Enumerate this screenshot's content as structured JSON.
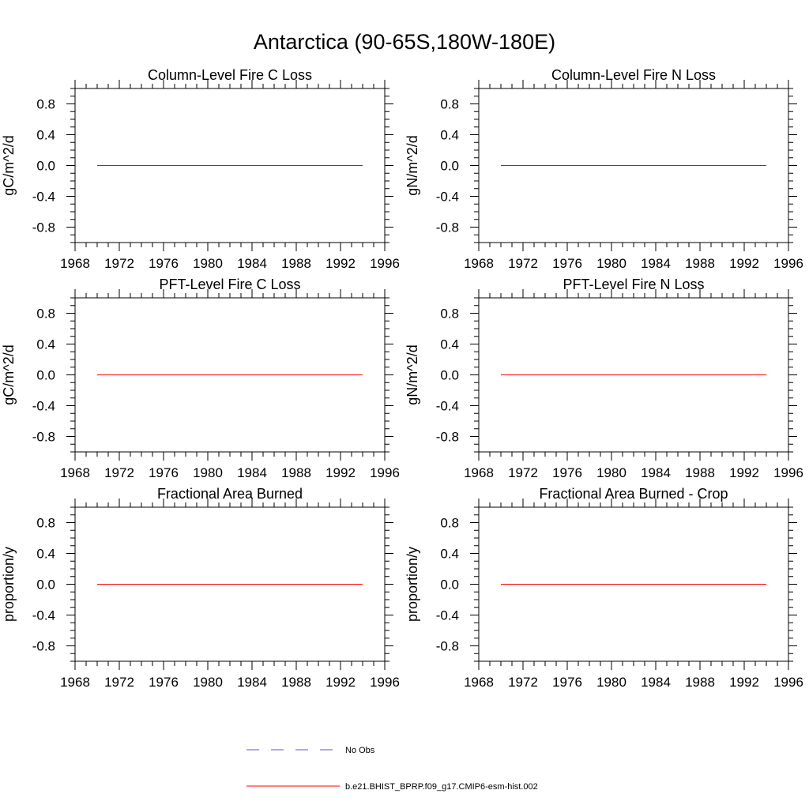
{
  "figure_title": "Antarctica (90-65S,180W-180E)",
  "chart_data": [
    {
      "type": "line",
      "title": "Column-Level Fire C Loss",
      "xlabel": "",
      "ylabel": "gC/m^2/d",
      "xlim": [
        1968,
        1996
      ],
      "ylim": [
        -1.0,
        1.0
      ],
      "x_ticks": [
        1968,
        1972,
        1976,
        1980,
        1984,
        1988,
        1992,
        1996
      ],
      "x_tick_labels": [
        "1968",
        "1972",
        "1976",
        "1980",
        "1984",
        "1988",
        "1992",
        "1996"
      ],
      "y_ticks": [
        -0.8,
        -0.4,
        0.0,
        0.4,
        0.8
      ],
      "y_tick_labels": [
        "-0.8",
        "-0.4",
        "0.0",
        "0.4",
        "0.8"
      ],
      "series": [
        {
          "name": "b.e21.BHIST_BPRP.f09_g17.CMIP6-esm-hist.002",
          "color": "#ff0000",
          "x": [
            1970,
            1994
          ],
          "values": [
            0.0,
            0.0
          ]
        }
      ]
    },
    {
      "type": "line",
      "title": "Column-Level Fire N Loss",
      "xlabel": "",
      "ylabel": "gN/m^2/d",
      "xlim": [
        1968,
        1996
      ],
      "ylim": [
        -1.0,
        1.0
      ],
      "x_ticks": [
        1968,
        1972,
        1976,
        1980,
        1984,
        1988,
        1992,
        1996
      ],
      "x_tick_labels": [
        "1968",
        "1972",
        "1976",
        "1980",
        "1984",
        "1988",
        "1992",
        "1996"
      ],
      "y_ticks": [
        -0.8,
        -0.4,
        0.0,
        0.4,
        0.8
      ],
      "y_tick_labels": [
        "-0.8",
        "-0.4",
        "0.0",
        "0.4",
        "0.8"
      ],
      "series": [
        {
          "name": "b.e21.BHIST_BPRP.f09_g17.CMIP6-esm-hist.002",
          "color": "#ff0000",
          "x": [
            1970,
            1994
          ],
          "values": [
            0.0,
            0.0
          ]
        }
      ]
    },
    {
      "type": "line",
      "title": "PFT-Level Fire C Loss",
      "xlabel": "",
      "ylabel": "gC/m^2/d",
      "xlim": [
        1968,
        1996
      ],
      "ylim": [
        -1.0,
        1.0
      ],
      "x_ticks": [
        1968,
        1972,
        1976,
        1980,
        1984,
        1988,
        1992,
        1996
      ],
      "x_tick_labels": [
        "1968",
        "1972",
        "1976",
        "1980",
        "1984",
        "1988",
        "1992",
        "1996"
      ],
      "y_ticks": [
        -0.8,
        -0.4,
        0.0,
        0.4,
        0.8
      ],
      "y_tick_labels": [
        "-0.8",
        "-0.4",
        "0.0",
        "0.4",
        "0.8"
      ],
      "series": [
        {
          "name": "b.e21.BHIST_BPRP.f09_g17.CMIP6-esm-hist.002",
          "color": "#ff0000",
          "x": [
            1970,
            1994
          ],
          "values": [
            0.0,
            0.0
          ]
        }
      ]
    },
    {
      "type": "line",
      "title": "PFT-Level Fire N Loss",
      "xlabel": "",
      "ylabel": "gN/m^2/d",
      "xlim": [
        1968,
        1996
      ],
      "ylim": [
        -1.0,
        1.0
      ],
      "x_ticks": [
        1968,
        1972,
        1976,
        1980,
        1984,
        1988,
        1992,
        1996
      ],
      "x_tick_labels": [
        "1968",
        "1972",
        "1976",
        "1980",
        "1984",
        "1988",
        "1992",
        "1996"
      ],
      "y_ticks": [
        -0.8,
        -0.4,
        0.0,
        0.4,
        0.8
      ],
      "y_tick_labels": [
        "-0.8",
        "-0.4",
        "0.0",
        "0.4",
        "0.8"
      ],
      "series": [
        {
          "name": "b.e21.BHIST_BPRP.f09_g17.CMIP6-esm-hist.002",
          "color": "#ff0000",
          "x": [
            1970,
            1994
          ],
          "values": [
            0.0,
            0.0
          ]
        }
      ]
    },
    {
      "type": "line",
      "title": "Fractional Area Burned",
      "xlabel": "",
      "ylabel": "proportion/y",
      "xlim": [
        1968,
        1996
      ],
      "ylim": [
        -1.0,
        1.0
      ],
      "x_ticks": [
        1968,
        1972,
        1976,
        1980,
        1984,
        1988,
        1992,
        1996
      ],
      "x_tick_labels": [
        "1968",
        "1972",
        "1976",
        "1980",
        "1984",
        "1988",
        "1992",
        "1996"
      ],
      "y_ticks": [
        -0.8,
        -0.4,
        0.0,
        0.4,
        0.8
      ],
      "y_tick_labels": [
        "-0.8",
        "-0.4",
        "0.0",
        "0.4",
        "0.8"
      ],
      "series": [
        {
          "name": "b.e21.BHIST_BPRP.f09_g17.CMIP6-esm-hist.002",
          "color": "#ff0000",
          "x": [
            1970,
            1994
          ],
          "values": [
            0.0,
            0.0
          ]
        }
      ]
    },
    {
      "type": "line",
      "title": "Fractional Area Burned - Crop",
      "xlabel": "",
      "ylabel": "proportion/y",
      "xlim": [
        1968,
        1996
      ],
      "ylim": [
        -1.0,
        1.0
      ],
      "x_ticks": [
        1968,
        1972,
        1976,
        1980,
        1984,
        1988,
        1992,
        1996
      ],
      "x_tick_labels": [
        "1968",
        "1972",
        "1976",
        "1980",
        "1984",
        "1988",
        "1992",
        "1996"
      ],
      "y_ticks": [
        -0.8,
        -0.4,
        0.0,
        0.4,
        0.8
      ],
      "y_tick_labels": [
        "-0.8",
        "-0.4",
        "0.0",
        "0.4",
        "0.8"
      ],
      "series": [
        {
          "name": "b.e21.BHIST_BPRP.f09_g17.CMIP6-esm-hist.002",
          "color": "#ff0000",
          "x": [
            1970,
            1994
          ],
          "values": [
            0.0,
            0.0
          ]
        }
      ]
    }
  ],
  "legend": {
    "entries": [
      {
        "label": "No Obs",
        "color": "#5555cc",
        "style": "dashed"
      },
      {
        "label": "b.e21.BHIST_BPRP.f09_g17.CMIP6-esm-hist.002",
        "color": "#ff0000",
        "style": "solid"
      }
    ]
  }
}
